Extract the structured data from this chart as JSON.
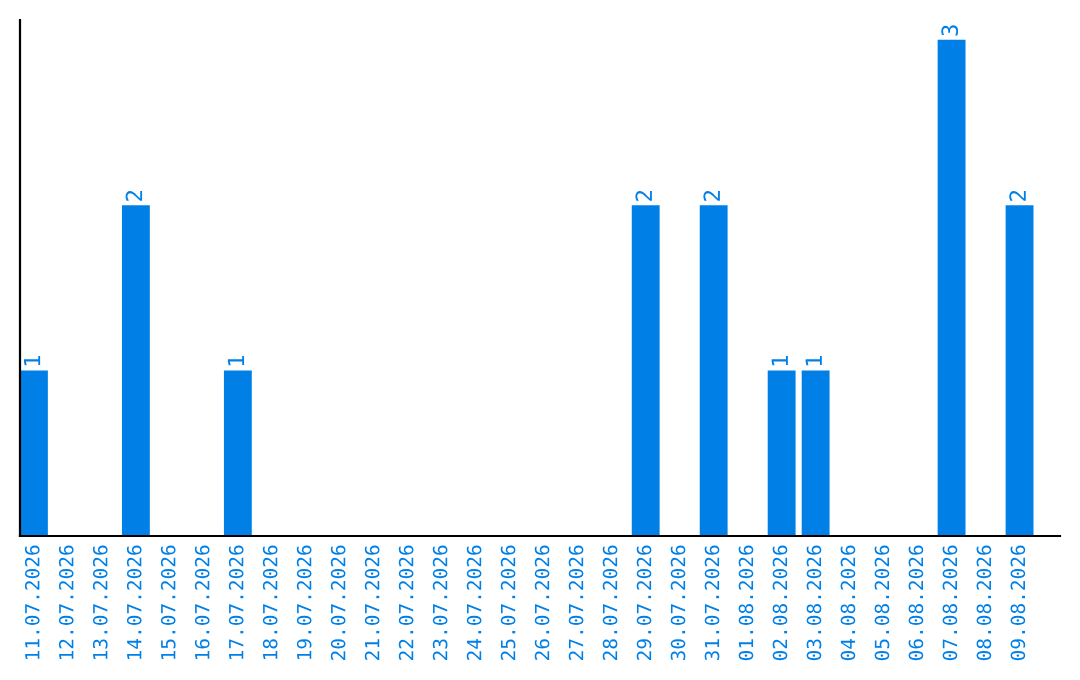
{
  "chart_data": {
    "type": "bar",
    "categories": [
      "11.07.2026",
      "12.07.2026",
      "13.07.2026",
      "14.07.2026",
      "15.07.2026",
      "16.07.2026",
      "17.07.2026",
      "18.07.2026",
      "19.07.2026",
      "20.07.2026",
      "21.07.2026",
      "22.07.2026",
      "23.07.2026",
      "24.07.2026",
      "25.07.2026",
      "26.07.2026",
      "27.07.2026",
      "28.07.2026",
      "29.07.2026",
      "30.07.2026",
      "31.07.2026",
      "01.08.2026",
      "02.08.2026",
      "03.08.2026",
      "04.08.2026",
      "05.08.2026",
      "06.08.2026",
      "07.08.2026",
      "08.08.2026",
      "09.08.2026"
    ],
    "values": [
      1,
      0,
      0,
      2,
      0,
      0,
      1,
      0,
      0,
      0,
      0,
      0,
      0,
      0,
      0,
      0,
      0,
      0,
      2,
      0,
      2,
      0,
      1,
      1,
      0,
      0,
      0,
      3,
      0,
      2
    ],
    "value_labels": [
      "1",
      null,
      null,
      "2",
      null,
      null,
      "1",
      null,
      null,
      null,
      null,
      null,
      null,
      null,
      null,
      null,
      null,
      null,
      "2",
      null,
      "2",
      null,
      "1",
      "1",
      null,
      null,
      null,
      "3",
      null,
      "2"
    ],
    "color": "#0080e6",
    "grid": false,
    "legend": false
  }
}
